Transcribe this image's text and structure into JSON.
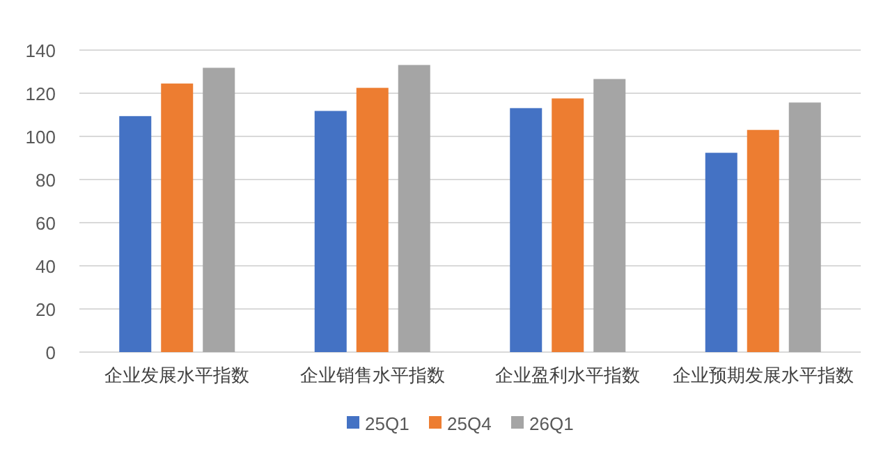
{
  "chart_data": {
    "type": "bar",
    "categories": [
      "企业发展水平指数",
      "企业销售水平指数",
      "企业盈利水平指数",
      "企业预期发展水平指数"
    ],
    "series": [
      {
        "name": "25Q1",
        "color": "#4472c4",
        "values": [
          109.4,
          111.8,
          113.1,
          92.4
        ]
      },
      {
        "name": "25Q4",
        "color": "#ed7d31",
        "values": [
          124.5,
          122.5,
          117.6,
          103.0
        ]
      },
      {
        "name": "26Q1",
        "color": "#a5a5a5",
        "values": [
          131.8,
          133.1,
          126.6,
          115.7
        ]
      }
    ],
    "ylim": [
      0,
      140
    ],
    "yticks": [
      0,
      20,
      40,
      60,
      80,
      100,
      120,
      140
    ],
    "grid": "y",
    "legend": "bottom"
  }
}
